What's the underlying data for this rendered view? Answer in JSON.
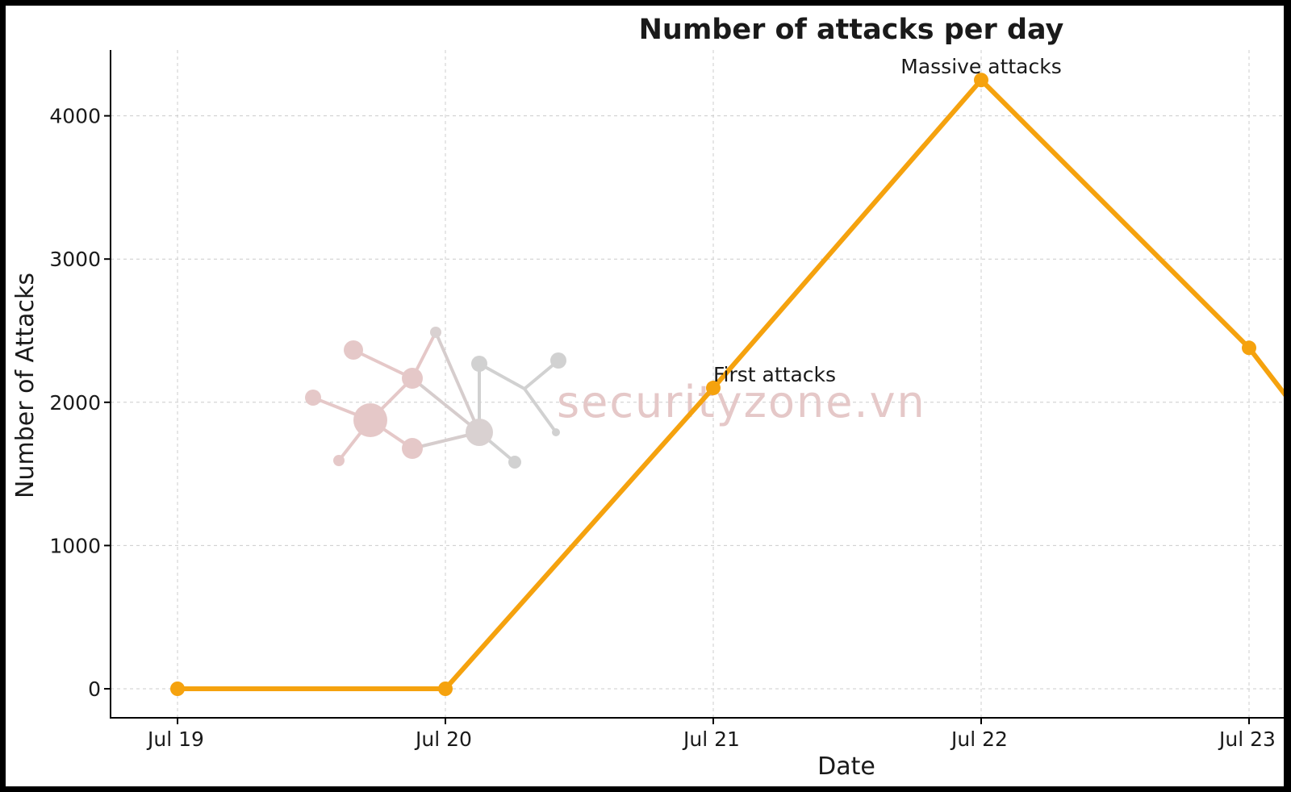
{
  "chart_data": {
    "type": "line",
    "title": "Number of attacks per day",
    "xlabel": "Date",
    "ylabel": "Number of Attacks",
    "categories": [
      "Jul 19",
      "Jul 20",
      "Jul 21",
      "Jul 22",
      "Jul 23"
    ],
    "series": [
      {
        "values": [
          0,
          0,
          2100,
          4250,
          2380
        ],
        "color": "#f5a20e"
      }
    ],
    "continuation_value": "trend continues downward past Jul 23 (about 2000 at right edge)",
    "yticks": [
      "0",
      "1000",
      "2000",
      "3000",
      "4000"
    ],
    "ylim": [
      -200,
      4450
    ],
    "grid": true,
    "annotations": [
      {
        "text": "First attacks",
        "at": "Jul 21"
      },
      {
        "text": "Massive attacks",
        "at": "Jul 22"
      }
    ]
  },
  "watermark": {
    "text": "securityzone.vn",
    "colors": {
      "pink": "#e4c6c6",
      "gray": "#cfcfcf"
    }
  }
}
